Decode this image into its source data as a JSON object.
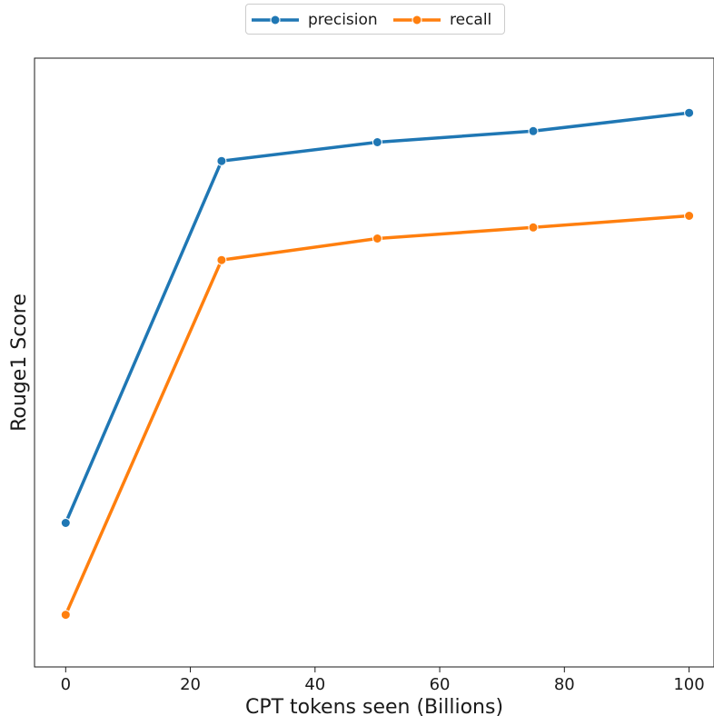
{
  "chart_data": {
    "type": "line",
    "title": "",
    "xlabel": "CPT tokens seen (Billions)",
    "ylabel": "Rouge1 Score",
    "x": [
      0,
      25,
      50,
      75,
      100
    ],
    "xlim": [
      -5,
      104
    ],
    "xticks": [
      "0",
      "20",
      "40",
      "60",
      "80",
      "100"
    ],
    "xtick_values": [
      0,
      20,
      40,
      60,
      80,
      100
    ],
    "ylim": [
      0.0,
      1.0
    ],
    "yticks_visible": false,
    "grid": false,
    "legend_position": "top-center",
    "series": [
      {
        "name": "precision",
        "color": "#1f77b4",
        "marker": "circle",
        "values": [
          0.211,
          0.865,
          0.899,
          0.919,
          0.952
        ]
      },
      {
        "name": "recall",
        "color": "#ff7f0e",
        "marker": "circle",
        "values": [
          0.045,
          0.686,
          0.725,
          0.745,
          0.766
        ]
      }
    ]
  }
}
